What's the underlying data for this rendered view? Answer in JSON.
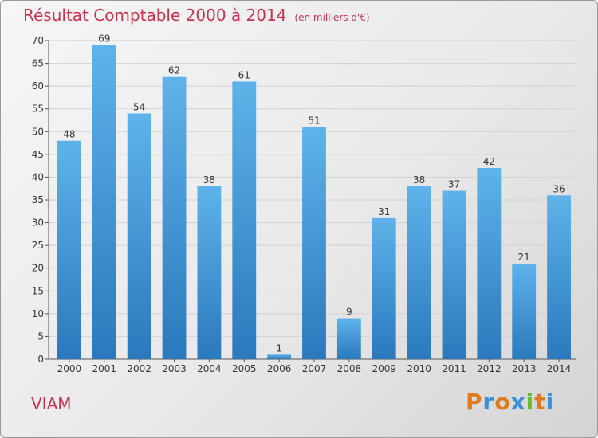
{
  "header": {
    "title": "Résultat Comptable 2000 à 2014",
    "unit": "(en milliers d'€)"
  },
  "footer": {
    "commune": "VIAM",
    "logo_letters": [
      "P",
      "r",
      "o",
      "x",
      "i",
      "t",
      "i"
    ],
    "logo_colors": [
      "#e07a1f",
      "#3a8fd6",
      "#e07a1f",
      "#3a8fd6",
      "#6ab82e",
      "#e07a1f",
      "#3a8fd6"
    ]
  },
  "colors": {
    "title": "#c8344f",
    "bar_top": "#5eb3ea",
    "bar_bottom": "#2a79bd"
  },
  "chart_data": {
    "type": "bar",
    "title": "Résultat Comptable 2000 à 2014",
    "ylabel": "",
    "xlabel": "",
    "ylim": [
      0,
      70
    ],
    "yticks": [
      0,
      5,
      10,
      15,
      20,
      25,
      30,
      35,
      40,
      45,
      50,
      55,
      60,
      65,
      70
    ],
    "categories": [
      "2000",
      "2001",
      "2002",
      "2003",
      "2004",
      "2005",
      "2006",
      "2007",
      "2008",
      "2009",
      "2010",
      "2011",
      "2012",
      "2013",
      "2014"
    ],
    "values": [
      48,
      69,
      54,
      62,
      38,
      61,
      1,
      51,
      9,
      31,
      38,
      37,
      42,
      21,
      36
    ]
  }
}
